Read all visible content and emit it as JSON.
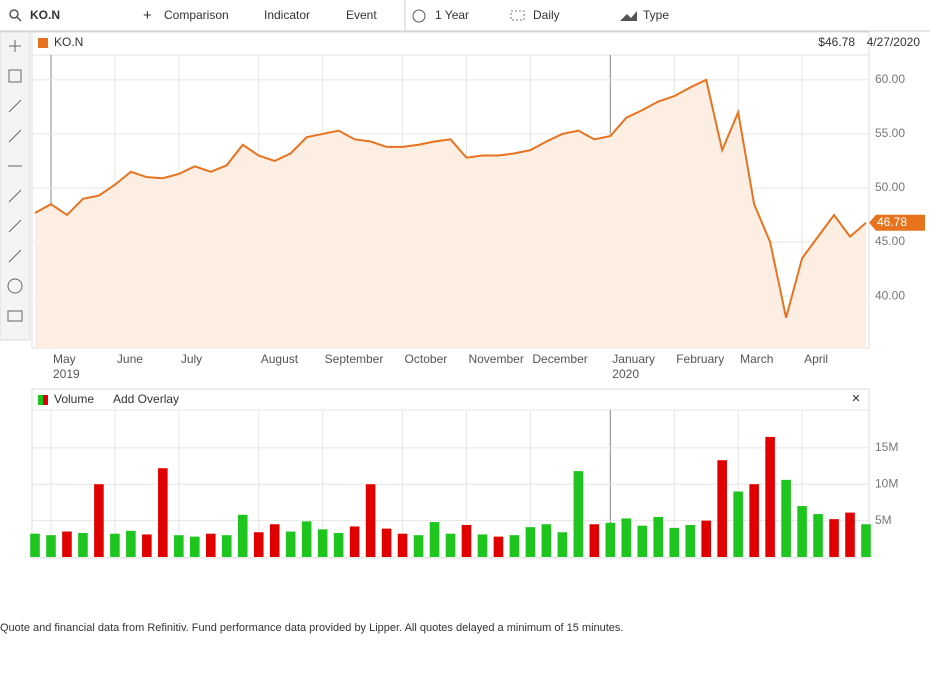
{
  "toolbar": {
    "symbol": "KO.N",
    "items": [
      "Comparison",
      "Indicator",
      "Event",
      "1 Year",
      "Daily",
      "Type"
    ]
  },
  "legend": {
    "price": "$46.78",
    "date": "4/27/2020"
  },
  "volume_pane": {
    "action": "Add Overlay"
  },
  "footer": "Quote and financial data from Refinitiv. Fund performance data provided by Lipper. All quotes delayed a minimum of 15 minutes.",
  "chart_data": [
    {
      "type": "line",
      "categories": [
        null,
        "May 2019",
        null,
        null,
        null,
        "June",
        null,
        null,
        null,
        "July",
        null,
        null,
        null,
        null,
        "August",
        null,
        null,
        null,
        "September",
        null,
        null,
        null,
        null,
        "October",
        null,
        null,
        null,
        "November",
        null,
        null,
        null,
        "December",
        null,
        null,
        null,
        null,
        "January 2020",
        null,
        null,
        null,
        "February",
        null,
        null,
        null,
        "March",
        null,
        null,
        null,
        "April",
        null,
        null,
        null,
        null
      ],
      "series": [
        {
          "name": "KO.N",
          "color": "#e8731f",
          "values": [
            47.7,
            48.5,
            47.5,
            49.0,
            49.3,
            50.3,
            51.5,
            51.0,
            50.9,
            51.3,
            52.0,
            51.5,
            52.1,
            54.0,
            53.0,
            52.5,
            53.2,
            54.7,
            55.0,
            55.3,
            54.5,
            54.3,
            53.8,
            53.8,
            54.0,
            54.3,
            54.5,
            52.8,
            53.0,
            53.0,
            53.2,
            53.5,
            54.3,
            55.0,
            55.3,
            54.5,
            54.8,
            56.5,
            57.2,
            58.0,
            58.5,
            59.3,
            60.0,
            53.5,
            57.0,
            48.5,
            45.0,
            38.0,
            43.5,
            45.5,
            47.5,
            45.5,
            46.78
          ]
        }
      ],
      "ylim": [
        35.2,
        62.3
      ],
      "yticks": [
        {
          "value": 40,
          "label": "40.00"
        },
        {
          "value": 45,
          "label": "45.00"
        },
        {
          "value": 50,
          "label": "50.00"
        },
        {
          "value": 55,
          "label": "55.00"
        },
        {
          "value": 60,
          "label": "60.00"
        }
      ],
      "grid": true
    },
    {
      "type": "bar",
      "series": [
        {
          "name": "Volume",
          "values": [
            3200000,
            3000000,
            3500000,
            3300000,
            10000000,
            3200000,
            3600000,
            3100000,
            12200000,
            3000000,
            2800000,
            3200000,
            3000000,
            5800000,
            3400000,
            4500000,
            3500000,
            4900000,
            3800000,
            3300000,
            4200000,
            10000000,
            3900000,
            3200000,
            3000000,
            4800000,
            3200000,
            4400000,
            3100000,
            2800000,
            3000000,
            4100000,
            4500000,
            3400000,
            11800000,
            4500000,
            4700000,
            5300000,
            4300000,
            5500000,
            4000000,
            4400000,
            5000000,
            13300000,
            9000000,
            10000000,
            16500000,
            10600000,
            7000000,
            5900000,
            5200000,
            6100000,
            4500000
          ],
          "colors": [
            "#1ec51e",
            "#1ec51e",
            "#e00000",
            "#1ec51e",
            "#e00000",
            "#1ec51e",
            "#1ec51e",
            "#e00000",
            "#e00000",
            "#1ec51e",
            "#1ec51e",
            "#e00000",
            "#1ec51e",
            "#1ec51e",
            "#e00000",
            "#e00000",
            "#1ec51e",
            "#1ec51e",
            "#1ec51e",
            "#1ec51e",
            "#e00000",
            "#e00000",
            "#e00000",
            "#e00000",
            "#1ec51e",
            "#1ec51e",
            "#1ec51e",
            "#e00000",
            "#1ec51e",
            "#e00000",
            "#1ec51e",
            "#1ec51e",
            "#1ec51e",
            "#1ec51e",
            "#1ec51e",
            "#e00000",
            "#1ec51e",
            "#1ec51e",
            "#1ec51e",
            "#1ec51e",
            "#1ec51e",
            "#1ec51e",
            "#e00000",
            "#e00000",
            "#1ec51e",
            "#e00000",
            "#e00000",
            "#1ec51e",
            "#1ec51e",
            "#1ec51e",
            "#e00000",
            "#e00000",
            "#1ec51e"
          ]
        }
      ],
      "ylim": [
        0,
        20200000
      ],
      "yticks": [
        {
          "value": 5000000,
          "label": "5M"
        },
        {
          "value": 10000000,
          "label": "10M"
        },
        {
          "value": 15000000,
          "label": "15M"
        }
      ],
      "grid": true
    }
  ]
}
